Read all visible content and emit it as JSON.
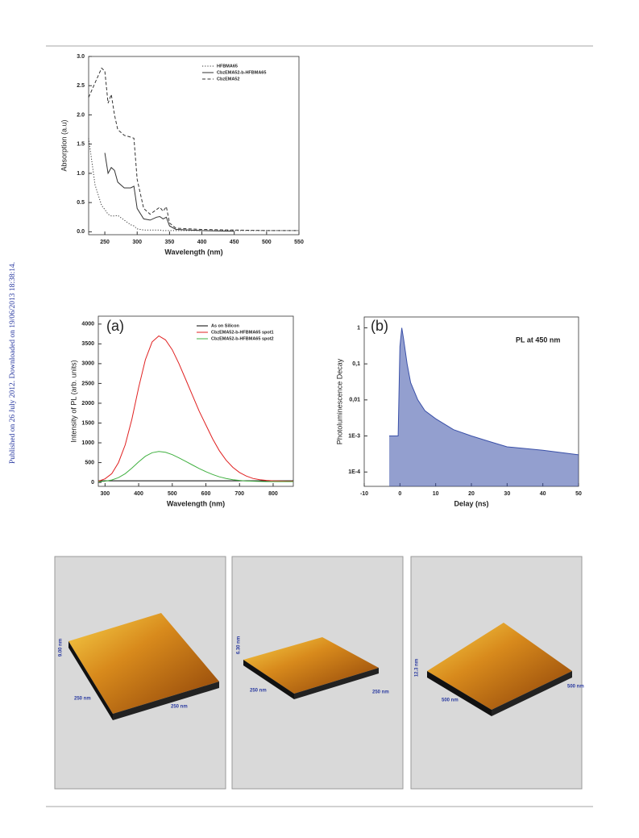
{
  "side_note": "Published on 26 July 2012. Downloaded on 19/06/2013 18:38:14.",
  "chart_data": [
    {
      "type": "line",
      "xlabel": "Wavelength (nm)",
      "ylabel": "Absorption (a.u)",
      "xlim": [
        225,
        550
      ],
      "xticks": [
        250,
        300,
        350,
        400,
        450,
        500,
        550
      ],
      "ylim": [
        -0.05,
        3.0
      ],
      "yticks": [
        {
          "value": 0,
          "label": "0.0"
        },
        {
          "value": 0.5,
          "label": "0.5"
        },
        {
          "value": 1,
          "label": "1.0"
        },
        {
          "value": 1.5,
          "label": "1.5"
        },
        {
          "value": 2,
          "label": "2.0"
        },
        {
          "value": 2.5,
          "label": "2.5"
        },
        {
          "value": 3,
          "label": "3.0"
        }
      ],
      "legend": "upper right",
      "x": [
        225,
        235,
        245,
        250,
        255,
        260,
        265,
        270,
        280,
        290,
        295,
        300,
        310,
        320,
        330,
        335,
        340,
        345,
        350,
        360,
        400,
        450,
        500,
        550
      ],
      "series": [
        {
          "name": "HFBMA65",
          "color": "#333333",
          "line_style": "dotted",
          "values": [
            1.6,
            0.8,
            0.45,
            0.38,
            0.3,
            0.27,
            0.27,
            0.28,
            0.2,
            0.12,
            0.1,
            0.05,
            0.03,
            0.03,
            0.03,
            0.03,
            0.02,
            0.02,
            0.02,
            0.02,
            0.02,
            0.02,
            0.02,
            0.02
          ]
        },
        {
          "name": "CbzEMA52-b-HFBMA65",
          "color": "#333333",
          "line_style": "solid",
          "values": [
            null,
            null,
            null,
            1.35,
            1.0,
            1.1,
            1.05,
            0.85,
            0.75,
            0.75,
            0.78,
            0.4,
            0.22,
            0.2,
            0.25,
            0.26,
            0.22,
            0.25,
            0.1,
            0.04,
            0.02,
            0.01,
            null,
            null
          ]
        },
        {
          "name": "CbzEMA52",
          "color": "#333333",
          "line_style": "dashed",
          "values": [
            2.3,
            2.55,
            2.8,
            2.75,
            2.2,
            2.35,
            2.0,
            1.75,
            1.65,
            1.62,
            1.6,
            0.9,
            0.4,
            0.3,
            0.38,
            0.42,
            0.35,
            0.43,
            0.15,
            0.06,
            0.04,
            0.03,
            0.02,
            0.02
          ]
        }
      ]
    },
    {
      "type": "line",
      "xlabel": "Wavelength (nm)",
      "ylabel": "Intensity of PL (arb. units)",
      "annotations": [
        "(a)"
      ],
      "xlim": [
        280,
        860
      ],
      "xticks": [
        300,
        400,
        500,
        600,
        700,
        800
      ],
      "ylim": [
        -100,
        4200
      ],
      "yticks": [
        0,
        500,
        1000,
        1500,
        2000,
        2500,
        3000,
        3500,
        4000
      ],
      "legend": "upper right",
      "x": [
        280,
        300,
        320,
        340,
        360,
        380,
        400,
        420,
        440,
        460,
        480,
        500,
        520,
        540,
        560,
        580,
        600,
        620,
        640,
        660,
        680,
        700,
        720,
        740,
        760,
        780,
        800,
        820,
        840,
        860
      ],
      "series": [
        {
          "name": "As on Silicon",
          "color": "#000000",
          "line_style": "solid",
          "values": [
            40,
            40,
            40,
            40,
            40,
            40,
            40,
            40,
            40,
            40,
            40,
            40,
            40,
            40,
            40,
            40,
            40,
            40,
            40,
            40,
            40,
            40,
            40,
            40,
            40,
            40,
            40,
            40,
            40,
            40
          ]
        },
        {
          "name": "CbzEMA52-b-HFBMA65 spot1",
          "color": "#e02020",
          "line_style": "solid",
          "values": [
            30,
            90,
            220,
            500,
            950,
            1600,
            2400,
            3100,
            3550,
            3700,
            3600,
            3350,
            3000,
            2600,
            2200,
            1800,
            1450,
            1100,
            800,
            560,
            380,
            250,
            160,
            100,
            70,
            50,
            40,
            35,
            30,
            30
          ]
        },
        {
          "name": "CbzEMA52-b-HFBMA65 spot2",
          "color": "#40b040",
          "line_style": "solid",
          "values": [
            20,
            30,
            60,
            120,
            220,
            360,
            520,
            660,
            750,
            780,
            760,
            700,
            620,
            530,
            440,
            350,
            270,
            200,
            140,
            100,
            70,
            50,
            35,
            30,
            25,
            20,
            20,
            20,
            20,
            20
          ]
        }
      ]
    },
    {
      "type": "line",
      "xlabel": "Delay (ns)",
      "ylabel": "Photoluminescence Decay",
      "annotations": [
        "(b)",
        "PL at 450 nm"
      ],
      "log_y": true,
      "xlim": [
        -10,
        50
      ],
      "xticks": [
        -10,
        0,
        10,
        20,
        30,
        40,
        50
      ],
      "ylim": [
        4e-05,
        2
      ],
      "yticks": [
        {
          "value": 0.0001,
          "label": "1E-4"
        },
        {
          "value": 0.001,
          "label": "1E-3"
        },
        {
          "value": 0.01,
          "label": "0,01"
        },
        {
          "value": 0.1,
          "label": "0,1"
        },
        1
      ],
      "x": [
        -3,
        -0.5,
        0,
        0.5,
        1,
        2,
        3,
        5,
        7,
        10,
        15,
        20,
        25,
        30,
        40,
        50
      ],
      "series": [
        {
          "name": null,
          "color": "#3a50a8",
          "line_style": "solid",
          "fill": true,
          "values": [
            0.001,
            0.001,
            0.3,
            1,
            0.5,
            0.1,
            0.03,
            0.01,
            0.005,
            0.003,
            0.0015,
            0.001,
            0.0007,
            0.0005,
            0.0004,
            0.0003
          ]
        }
      ]
    }
  ],
  "afm": {
    "panels": [
      {
        "labels": [
          "9.00 nm",
          "250 nm",
          "250 nm"
        ]
      },
      {
        "labels": [
          "6.30 nm",
          "250 nm",
          "250 nm"
        ]
      },
      {
        "labels": [
          "12.3 nm",
          "500 nm",
          "500 nm"
        ]
      }
    ]
  }
}
